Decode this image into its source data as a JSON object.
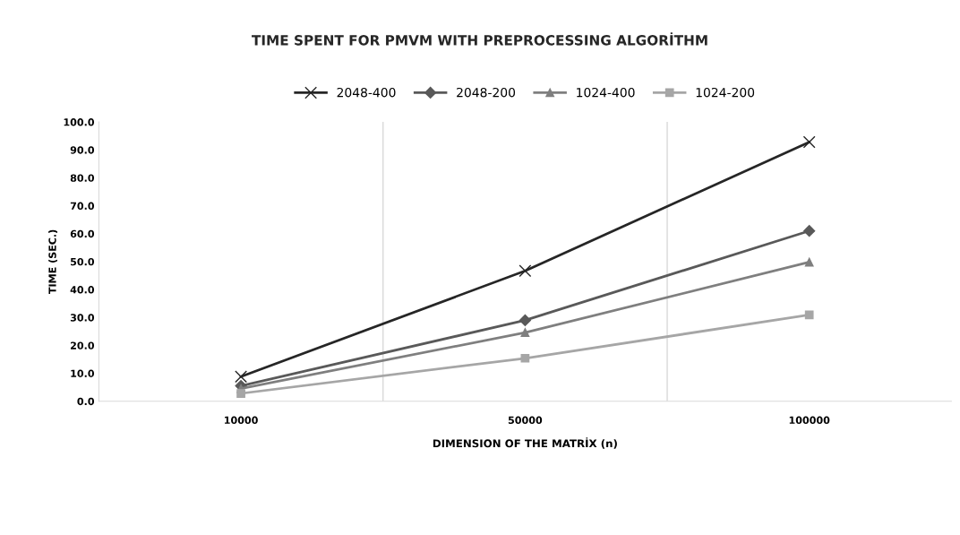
{
  "chart_data": {
    "type": "line",
    "title": "TIME SPENT FOR PMVM WITH PREPROCESSING ALGORİTHM",
    "xlabel": "DIMENSION OF THE MATRİX (n)",
    "ylabel": "TIME (SEC.)",
    "categories": [
      "10000",
      "50000",
      "100000"
    ],
    "series": [
      {
        "name": "2048-400",
        "color": "#262626",
        "marker": "cross",
        "values": [
          8.8,
          46.7,
          92.8
        ]
      },
      {
        "name": "2048-200",
        "color": "#595959",
        "marker": "diamond",
        "values": [
          5.5,
          29.0,
          61.0
        ]
      },
      {
        "name": "1024-400",
        "color": "#7f7f7f",
        "marker": "triangle",
        "values": [
          4.5,
          24.6,
          49.8
        ]
      },
      {
        "name": "1024-200",
        "color": "#a6a6a6",
        "marker": "square",
        "values": [
          2.8,
          15.4,
          30.9
        ]
      }
    ],
    "ylim": [
      0,
      100
    ],
    "yticks": [
      {
        "value": 0,
        "label": "0.0"
      },
      {
        "value": 10,
        "label": "10.0"
      },
      {
        "value": 20,
        "label": "20.0"
      },
      {
        "value": 30,
        "label": "30.0"
      },
      {
        "value": 40,
        "label": "40.0"
      },
      {
        "value": 50,
        "label": "50.0"
      },
      {
        "value": 60,
        "label": "60.0"
      },
      {
        "value": 70,
        "label": "70.0"
      },
      {
        "value": 80,
        "label": "80.0"
      },
      {
        "value": 90,
        "label": "90.0"
      },
      {
        "value": 100,
        "label": "100.0"
      }
    ],
    "grid": "x",
    "legend": "top",
    "line_style": "solid"
  }
}
